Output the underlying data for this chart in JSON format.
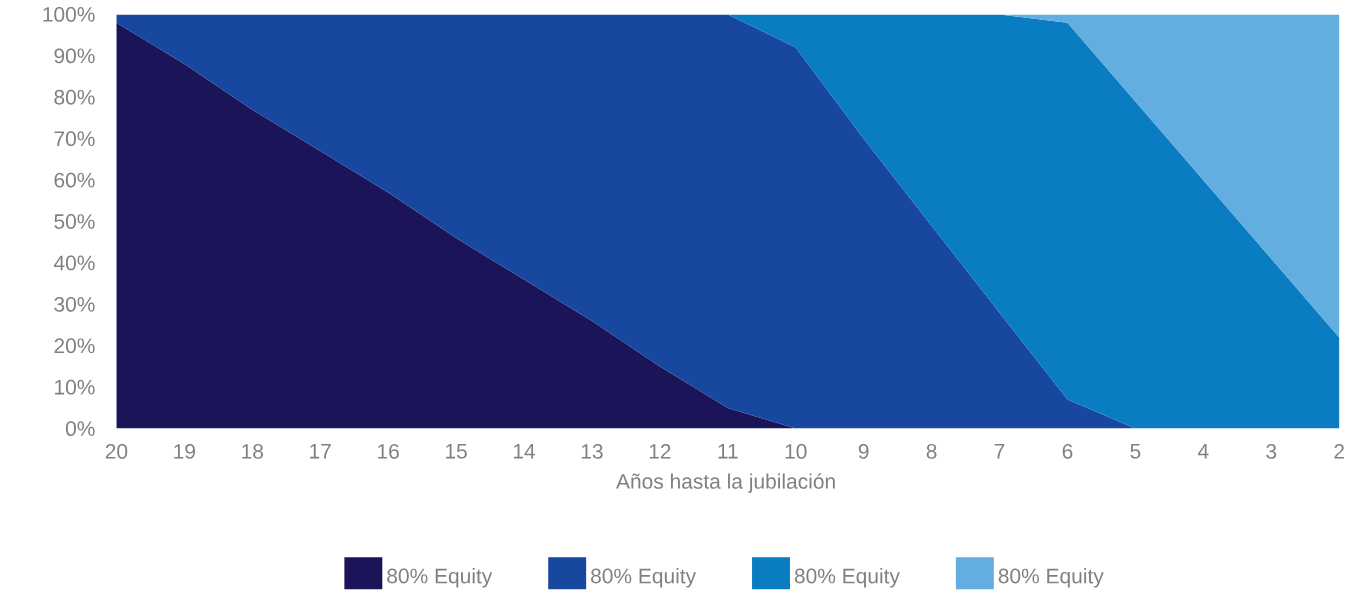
{
  "chart_data": {
    "type": "area",
    "stacked": true,
    "xlabel": "Años hasta la jubilación",
    "categories": [
      "20",
      "19",
      "18",
      "17",
      "16",
      "15",
      "14",
      "13",
      "12",
      "11",
      "10",
      "9",
      "8",
      "7",
      "6",
      "5",
      "4",
      "3",
      "2"
    ],
    "ylim": [
      0,
      100
    ],
    "yticks": [
      {
        "value": 0,
        "label": "0%"
      },
      {
        "value": 10,
        "label": "10%"
      },
      {
        "value": 20,
        "label": "20%"
      },
      {
        "value": 30,
        "label": "30%"
      },
      {
        "value": 40,
        "label": "40%"
      },
      {
        "value": 50,
        "label": "50%"
      },
      {
        "value": 60,
        "label": "60%"
      },
      {
        "value": 70,
        "label": "70%"
      },
      {
        "value": 80,
        "label": "80%"
      },
      {
        "value": 90,
        "label": "90%"
      },
      {
        "value": 100,
        "label": "100%"
      }
    ],
    "legend": "bottom",
    "grid": false,
    "series": [
      {
        "name": "80% Equity",
        "color": "#1b1458",
        "values": [
          98,
          88,
          77,
          67,
          57,
          46,
          36,
          26,
          15,
          5,
          0,
          null,
          null,
          null,
          null,
          null,
          null,
          null,
          null
        ]
      },
      {
        "name": "80% Equity",
        "color": "#17479e",
        "values": [
          2,
          12,
          23,
          33,
          43,
          54,
          64,
          74,
          85,
          95,
          92,
          70,
          49,
          28,
          7,
          0,
          null,
          null,
          null
        ]
      },
      {
        "name": "80% Equity",
        "color": "#0a7cc1",
        "values": [
          null,
          null,
          null,
          null,
          null,
          null,
          null,
          null,
          null,
          0,
          8,
          30,
          51,
          72,
          91,
          79,
          60,
          41,
          22
        ]
      },
      {
        "name": "80% Equity",
        "color": "#62aee0",
        "values": [
          null,
          null,
          null,
          null,
          null,
          null,
          null,
          null,
          null,
          null,
          null,
          null,
          null,
          0,
          2,
          21,
          40,
          59,
          78
        ]
      }
    ]
  }
}
